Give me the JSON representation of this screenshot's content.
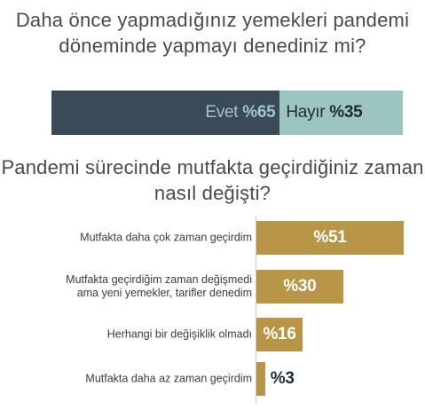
{
  "chart_data": [
    {
      "type": "bar",
      "orientation": "horizontal-stacked",
      "title": "Daha önce yapmadığınız yemekleri pandemi döneminde yapmayı denediniz mi?",
      "categories": [
        "Evet",
        "Hayır"
      ],
      "values": [
        65,
        35
      ],
      "value_labels": [
        "%65",
        "%35"
      ],
      "colors": [
        "#3a4a56",
        "#9cc5c0"
      ],
      "xlim": [
        0,
        100
      ]
    },
    {
      "type": "bar",
      "orientation": "horizontal",
      "title": "Pandemi sürecinde mutfakta geçirdiğiniz zaman nasıl değişti?",
      "categories": [
        "Mutfakta daha çok zaman geçirdim",
        "Mutfakta geçirdiğim zaman değişmedi\nama yeni yemekler, tarifler denedim",
        "Herhangi bir değişiklik olmadı",
        "Mutfakta daha az zaman geçirdim"
      ],
      "values": [
        51,
        30,
        16,
        3
      ],
      "value_labels": [
        "%51",
        "%30",
        "%16",
        "%3"
      ],
      "colors": [
        "#b99547"
      ],
      "xlim": [
        0,
        51
      ]
    }
  ]
}
